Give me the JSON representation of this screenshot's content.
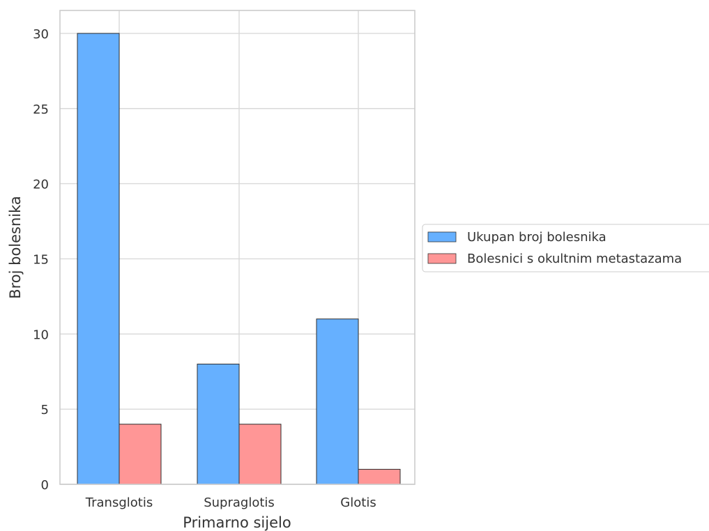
{
  "chart_data": {
    "type": "bar",
    "categories": [
      "Transglotis",
      "Supraglotis",
      "Glotis"
    ],
    "series": [
      {
        "name": "Ukupan broj bolesnika",
        "values": [
          30,
          8,
          11
        ],
        "color": "#66b0ff"
      },
      {
        "name": "Bolesnici s okultnim metastazama",
        "values": [
          4,
          4,
          1
        ],
        "color": "#ff9696"
      }
    ],
    "title": "",
    "xlabel": "Primarno sijelo",
    "ylabel": "Broj bolesnika",
    "ylim": [
      0,
      31.5
    ],
    "yticks": [
      0,
      5,
      10,
      15,
      20,
      25,
      30
    ],
    "grid": true,
    "legend_position": "right"
  }
}
